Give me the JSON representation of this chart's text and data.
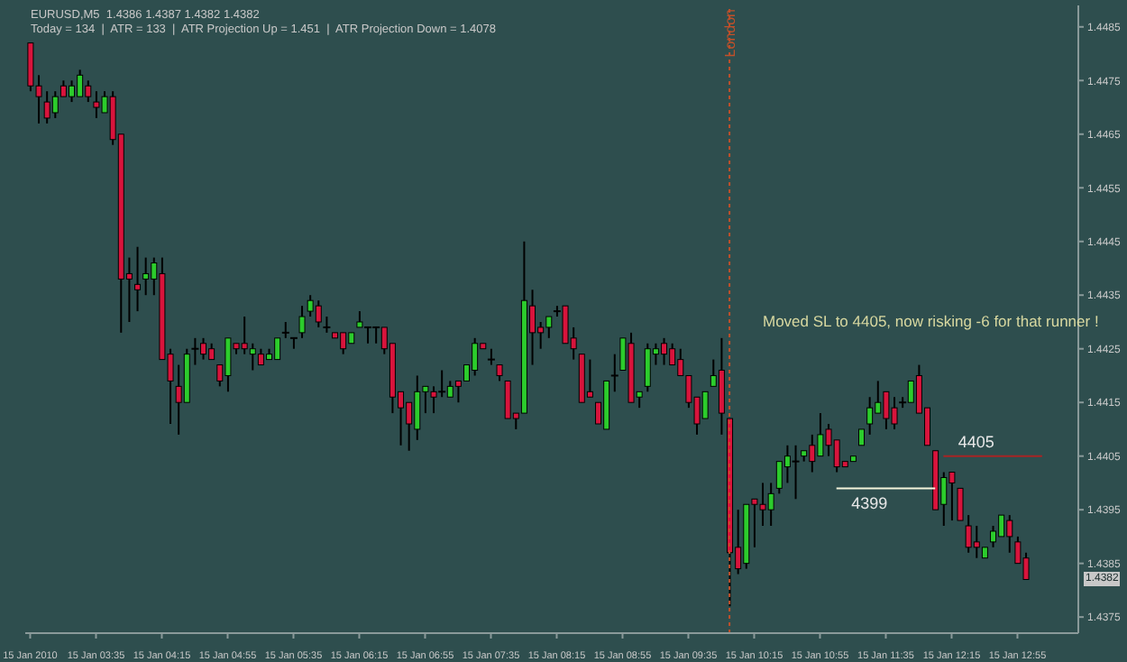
{
  "chart_data": {
    "type": "candlestick",
    "title": "EURUSD,M5  1.4386 1.4387 1.4382 1.4382",
    "subtitle": "Today = 134  |  ATR = 133  |  ATR Projection Up = 1.451  |  ATR Projection Down = 1.4078",
    "ylim": [
      1.4372,
      1.4489
    ],
    "yticks": [
      1.4375,
      1.4385,
      1.4395,
      1.4405,
      1.4415,
      1.4425,
      1.4435,
      1.4445,
      1.4455,
      1.4465,
      1.4475,
      1.4485
    ],
    "xlim": [
      "2010-01-15T02:52",
      "2010-01-15T13:32"
    ],
    "xticks": [
      {
        "value": "2010-01-15T02:55",
        "label": "15 Jan 2010"
      },
      {
        "value": "2010-01-15T03:35",
        "label": "15 Jan 03:35"
      },
      {
        "value": "2010-01-15T04:15",
        "label": "15 Jan 04:15"
      },
      {
        "value": "2010-01-15T04:55",
        "label": "15 Jan 04:55"
      },
      {
        "value": "2010-01-15T05:35",
        "label": "15 Jan 05:35"
      },
      {
        "value": "2010-01-15T06:15",
        "label": "15 Jan 06:15"
      },
      {
        "value": "2010-01-15T06:55",
        "label": "15 Jan 06:55"
      },
      {
        "value": "2010-01-15T07:35",
        "label": "15 Jan 07:35"
      },
      {
        "value": "2010-01-15T08:15",
        "label": "15 Jan 08:15"
      },
      {
        "value": "2010-01-15T08:55",
        "label": "15 Jan 08:55"
      },
      {
        "value": "2010-01-15T09:35",
        "label": "15 Jan 09:35"
      },
      {
        "value": "2010-01-15T10:15",
        "label": "15 Jan 10:15"
      },
      {
        "value": "2010-01-15T10:55",
        "label": "15 Jan 10:55"
      },
      {
        "value": "2010-01-15T11:35",
        "label": "15 Jan 11:35"
      },
      {
        "value": "2010-01-15T12:15",
        "label": "15 Jan 12:15"
      },
      {
        "value": "2010-01-15T12:55",
        "label": "15 Jan 12:55"
      }
    ],
    "ref_lines": [
      {
        "axis": "x",
        "value": "2010-01-15T10:00",
        "label": "London",
        "color": "#c0502a",
        "line_style": "dotted"
      }
    ],
    "annotations": [
      "Moved SL to 4405,  now risking -6 for that runner !",
      {
        "text": "4405",
        "x": "2010-01-15T12:30",
        "y": 1.4405
      },
      {
        "text": "4399",
        "x": "2010-01-15T11:25",
        "y": 1.4399
      },
      "1.4382"
    ],
    "series": [
      {
        "x": [
          "2010-01-15T02:55",
          "2010-01-15T03:00",
          "2010-01-15T03:05",
          "2010-01-15T03:10",
          "2010-01-15T03:15",
          "2010-01-15T03:20",
          "2010-01-15T03:25",
          "2010-01-15T03:30",
          "2010-01-15T03:35",
          "2010-01-15T03:40",
          "2010-01-15T03:45",
          "2010-01-15T03:50",
          "2010-01-15T03:55",
          "2010-01-15T04:00",
          "2010-01-15T04:05",
          "2010-01-15T04:10",
          "2010-01-15T04:15",
          "2010-01-15T04:20",
          "2010-01-15T04:25",
          "2010-01-15T04:30",
          "2010-01-15T04:35",
          "2010-01-15T04:40",
          "2010-01-15T04:45",
          "2010-01-15T04:50",
          "2010-01-15T04:55",
          "2010-01-15T05:00",
          "2010-01-15T05:05",
          "2010-01-15T05:10",
          "2010-01-15T05:15",
          "2010-01-15T05:20",
          "2010-01-15T05:25",
          "2010-01-15T05:30",
          "2010-01-15T05:35",
          "2010-01-15T05:40",
          "2010-01-15T05:45",
          "2010-01-15T05:50",
          "2010-01-15T05:55",
          "2010-01-15T06:00",
          "2010-01-15T06:05",
          "2010-01-15T06:10",
          "2010-01-15T06:15",
          "2010-01-15T06:20",
          "2010-01-15T06:25",
          "2010-01-15T06:30",
          "2010-01-15T06:35",
          "2010-01-15T06:40",
          "2010-01-15T06:45",
          "2010-01-15T06:50",
          "2010-01-15T06:55",
          "2010-01-15T07:00",
          "2010-01-15T07:05",
          "2010-01-15T07:10",
          "2010-01-15T07:15",
          "2010-01-15T07:20",
          "2010-01-15T07:25",
          "2010-01-15T07:30",
          "2010-01-15T07:35",
          "2010-01-15T07:40",
          "2010-01-15T07:45",
          "2010-01-15T07:50",
          "2010-01-15T07:55",
          "2010-01-15T08:00",
          "2010-01-15T08:05",
          "2010-01-15T08:10",
          "2010-01-15T08:15",
          "2010-01-15T08:20",
          "2010-01-15T08:25",
          "2010-01-15T08:30",
          "2010-01-15T08:35",
          "2010-01-15T08:40",
          "2010-01-15T08:45",
          "2010-01-15T08:50",
          "2010-01-15T08:55",
          "2010-01-15T09:00",
          "2010-01-15T09:05",
          "2010-01-15T09:10",
          "2010-01-15T09:15",
          "2010-01-15T09:20",
          "2010-01-15T09:25",
          "2010-01-15T09:30",
          "2010-01-15T09:35",
          "2010-01-15T09:40",
          "2010-01-15T09:45",
          "2010-01-15T09:50",
          "2010-01-15T09:55",
          "2010-01-15T10:00",
          "2010-01-15T10:05",
          "2010-01-15T10:10",
          "2010-01-15T10:15",
          "2010-01-15T10:20",
          "2010-01-15T10:25",
          "2010-01-15T10:30",
          "2010-01-15T10:35",
          "2010-01-15T10:40",
          "2010-01-15T10:45",
          "2010-01-15T10:50",
          "2010-01-15T10:55",
          "2010-01-15T11:00",
          "2010-01-15T11:05",
          "2010-01-15T11:10",
          "2010-01-15T11:15",
          "2010-01-15T11:20",
          "2010-01-15T11:25",
          "2010-01-15T11:30",
          "2010-01-15T11:35",
          "2010-01-15T11:40",
          "2010-01-15T11:45",
          "2010-01-15T11:50",
          "2010-01-15T11:55",
          "2010-01-15T12:00",
          "2010-01-15T12:05",
          "2010-01-15T12:10",
          "2010-01-15T12:15",
          "2010-01-15T12:20",
          "2010-01-15T12:25",
          "2010-01-15T12:30",
          "2010-01-15T12:35",
          "2010-01-15T12:40",
          "2010-01-15T12:45",
          "2010-01-15T12:50",
          "2010-01-15T12:55",
          "2010-01-15T13:00"
        ],
        "ohlc": [
          [
            1.4482,
            1.4482,
            1.4473,
            1.4474
          ],
          [
            1.4474,
            1.4476,
            1.4467,
            1.4472
          ],
          [
            1.4471,
            1.4473,
            1.4467,
            1.4468
          ],
          [
            1.4469,
            1.4473,
            1.4468,
            1.4472
          ],
          [
            1.4474,
            1.4475,
            1.4472,
            1.4472
          ],
          [
            1.4472,
            1.4475,
            1.4471,
            1.4474
          ],
          [
            1.4472,
            1.4477,
            1.4472,
            1.4476
          ],
          [
            1.4474,
            1.4475,
            1.4471,
            1.4472
          ],
          [
            1.4471,
            1.4473,
            1.4468,
            1.447
          ],
          [
            1.4469,
            1.4473,
            1.4469,
            1.4472
          ],
          [
            1.4472,
            1.4473,
            1.4463,
            1.4464
          ],
          [
            1.4465,
            1.4465,
            1.4428,
            1.4438
          ],
          [
            1.4439,
            1.4442,
            1.443,
            1.4438
          ],
          [
            1.4437,
            1.4444,
            1.4432,
            1.4436
          ],
          [
            1.4438,
            1.4442,
            1.4435,
            1.4439
          ],
          [
            1.4438,
            1.4442,
            1.4435,
            1.4441
          ],
          [
            1.4439,
            1.4442,
            1.4423,
            1.4423
          ],
          [
            1.4424,
            1.4425,
            1.4411,
            1.4419
          ],
          [
            1.4418,
            1.4422,
            1.4409,
            1.4415
          ],
          [
            1.4415,
            1.4425,
            1.4415,
            1.4424
          ],
          [
            1.4425,
            1.4427,
            1.4422,
            1.4425
          ],
          [
            1.4426,
            1.4427,
            1.4423,
            1.4424
          ],
          [
            1.4425,
            1.4426,
            1.4423,
            1.4423
          ],
          [
            1.4422,
            1.4422,
            1.4418,
            1.4419
          ],
          [
            1.442,
            1.4427,
            1.4417,
            1.4427
          ],
          [
            1.4426,
            1.4426,
            1.4424,
            1.4425
          ],
          [
            1.4426,
            1.4431,
            1.4424,
            1.4425
          ],
          [
            1.4424,
            1.4426,
            1.4421,
            1.4425
          ],
          [
            1.4424,
            1.4425,
            1.4422,
            1.4422
          ],
          [
            1.4423,
            1.4425,
            1.4423,
            1.4424
          ],
          [
            1.4423,
            1.4427,
            1.4423,
            1.4427
          ],
          [
            1.4428,
            1.443,
            1.4427,
            1.4428
          ],
          [
            1.4427,
            1.4427,
            1.4425,
            1.4427
          ],
          [
            1.4428,
            1.4433,
            1.4427,
            1.4431
          ],
          [
            1.4432,
            1.4435,
            1.4431,
            1.4434
          ],
          [
            1.4433,
            1.4434,
            1.4429,
            1.443
          ],
          [
            1.4429,
            1.4431,
            1.4428,
            1.4429
          ],
          [
            1.4428,
            1.4428,
            1.4427,
            1.4427
          ],
          [
            1.4428,
            1.4428,
            1.4424,
            1.4425
          ],
          [
            1.4426,
            1.4428,
            1.4426,
            1.4428
          ],
          [
            1.4429,
            1.4432,
            1.4429,
            1.443
          ],
          [
            1.4429,
            1.4429,
            1.4426,
            1.4429
          ],
          [
            1.4429,
            1.4429,
            1.4426,
            1.4429
          ],
          [
            1.4429,
            1.4429,
            1.4424,
            1.4425
          ],
          [
            1.4426,
            1.4426,
            1.4413,
            1.4416
          ],
          [
            1.4417,
            1.4417,
            1.4407,
            1.4414
          ],
          [
            1.4415,
            1.4415,
            1.4406,
            1.4411
          ],
          [
            1.441,
            1.442,
            1.4408,
            1.4417
          ],
          [
            1.4417,
            1.4418,
            1.4413,
            1.4418
          ],
          [
            1.4417,
            1.4418,
            1.4413,
            1.4416
          ],
          [
            1.4417,
            1.4421,
            1.4416,
            1.4417
          ],
          [
            1.4416,
            1.4419,
            1.4416,
            1.4418
          ],
          [
            1.4419,
            1.4419,
            1.4415,
            1.4418
          ],
          [
            1.4419,
            1.4422,
            1.4419,
            1.4422
          ],
          [
            1.4421,
            1.4427,
            1.442,
            1.4426
          ],
          [
            1.4426,
            1.4426,
            1.4425,
            1.4425
          ],
          [
            1.4423,
            1.4425,
            1.4422,
            1.4423
          ],
          [
            1.4422,
            1.4422,
            1.4419,
            1.442
          ],
          [
            1.4419,
            1.4419,
            1.4412,
            1.4412
          ],
          [
            1.4413,
            1.4413,
            1.441,
            1.4412
          ],
          [
            1.4413,
            1.4445,
            1.4413,
            1.4434
          ],
          [
            1.4433,
            1.4436,
            1.4422,
            1.4428
          ],
          [
            1.4429,
            1.443,
            1.4425,
            1.4428
          ],
          [
            1.4429,
            1.4431,
            1.4427,
            1.4431
          ],
          [
            1.4432,
            1.4433,
            1.4431,
            1.4432
          ],
          [
            1.4433,
            1.4433,
            1.4426,
            1.4426
          ],
          [
            1.4427,
            1.4429,
            1.4423,
            1.4425
          ],
          [
            1.4424,
            1.4424,
            1.4415,
            1.4415
          ],
          [
            1.4417,
            1.4423,
            1.4416,
            1.4416
          ],
          [
            1.4415,
            1.4415,
            1.4411,
            1.4411
          ],
          [
            1.441,
            1.4419,
            1.441,
            1.4419
          ],
          [
            1.442,
            1.4424,
            1.4417,
            1.442
          ],
          [
            1.4421,
            1.4427,
            1.4421,
            1.4427
          ],
          [
            1.4426,
            1.4428,
            1.4415,
            1.4415
          ],
          [
            1.4416,
            1.4417,
            1.4414,
            1.4417
          ],
          [
            1.4418,
            1.4426,
            1.4417,
            1.4425
          ],
          [
            1.4424,
            1.4426,
            1.4422,
            1.4425
          ],
          [
            1.4426,
            1.4427,
            1.4422,
            1.4424
          ],
          [
            1.4425,
            1.4426,
            1.4422,
            1.4422
          ],
          [
            1.4423,
            1.4425,
            1.442,
            1.442
          ],
          [
            1.442,
            1.442,
            1.4414,
            1.4415
          ],
          [
            1.4416,
            1.4416,
            1.4409,
            1.4411
          ],
          [
            1.4412,
            1.4417,
            1.4412,
            1.4417
          ],
          [
            1.4418,
            1.4423,
            1.4418,
            1.442
          ],
          [
            1.4421,
            1.4427,
            1.4409,
            1.4413
          ],
          [
            1.4412,
            1.4412,
            1.4377,
            1.4387
          ],
          [
            1.4388,
            1.4395,
            1.4383,
            1.4384
          ],
          [
            1.4385,
            1.4396,
            1.4384,
            1.4396
          ],
          [
            1.4397,
            1.4397,
            1.4388,
            1.4396
          ],
          [
            1.4396,
            1.44,
            1.4392,
            1.4395
          ],
          [
            1.4395,
            1.44,
            1.4392,
            1.4398
          ],
          [
            1.4399,
            1.4404,
            1.4398,
            1.4404
          ],
          [
            1.4403,
            1.4407,
            1.44,
            1.4405
          ],
          [
            1.4404,
            1.4407,
            1.4397,
            1.4404
          ],
          [
            1.4405,
            1.4406,
            1.4404,
            1.4406
          ],
          [
            1.4407,
            1.4409,
            1.4402,
            1.4404
          ],
          [
            1.4405,
            1.4413,
            1.4405,
            1.4409
          ],
          [
            1.441,
            1.4411,
            1.4405,
            1.4407
          ],
          [
            1.4408,
            1.4408,
            1.4402,
            1.4403
          ],
          [
            1.4404,
            1.4404,
            1.4403,
            1.4403
          ],
          [
            1.4404,
            1.4405,
            1.4404,
            1.4405
          ],
          [
            1.4407,
            1.441,
            1.4407,
            1.441
          ],
          [
            1.4411,
            1.4416,
            1.4409,
            1.4414
          ],
          [
            1.4413,
            1.4419,
            1.4413,
            1.4415
          ],
          [
            1.4417,
            1.4417,
            1.441,
            1.4412
          ],
          [
            1.4414,
            1.4416,
            1.441,
            1.4411
          ],
          [
            1.4415,
            1.4416,
            1.4414,
            1.4415
          ],
          [
            1.4415,
            1.4419,
            1.4415,
            1.4419
          ],
          [
            1.442,
            1.4422,
            1.4413,
            1.4413
          ],
          [
            1.4414,
            1.4414,
            1.4407,
            1.4407
          ],
          [
            1.4406,
            1.4406,
            1.4395,
            1.4395
          ],
          [
            1.4396,
            1.4402,
            1.4392,
            1.4401
          ],
          [
            1.4402,
            1.4402,
            1.4393,
            1.44
          ],
          [
            1.4399,
            1.4399,
            1.4393,
            1.4393
          ],
          [
            1.4392,
            1.4394,
            1.4387,
            1.4388
          ],
          [
            1.4389,
            1.4392,
            1.4386,
            1.4388
          ],
          [
            1.4386,
            1.4388,
            1.4386,
            1.4388
          ],
          [
            1.4389,
            1.4392,
            1.4388,
            1.4391
          ],
          [
            1.439,
            1.4394,
            1.439,
            1.4394
          ],
          [
            1.4393,
            1.4394,
            1.4387,
            1.439
          ],
          [
            1.4389,
            1.439,
            1.4385,
            1.4385
          ],
          [
            1.4386,
            1.4387,
            1.4382,
            1.4382
          ]
        ],
        "colors": [
          "#d8143c",
          "#d8143c",
          "#d8143c",
          "#2ccc2c",
          "#d8143c",
          "#2ccc2c",
          "#2ccc2c",
          "#d8143c",
          "#d8143c",
          "#2ccc2c",
          "#d8143c",
          "#d8143c",
          "#d8143c",
          "#d8143c",
          "#2ccc2c",
          "#2ccc2c",
          "#d8143c",
          "#d8143c",
          "#d8143c",
          "#2ccc2c",
          "#000000",
          "#d8143c",
          "#d8143c",
          "#d8143c",
          "#2ccc2c",
          "#d8143c",
          "#d8143c",
          "#2ccc2c",
          "#d8143c",
          "#2ccc2c",
          "#2ccc2c",
          "#000000",
          "#000000",
          "#2ccc2c",
          "#2ccc2c",
          "#d8143c",
          "#000000",
          "#d8143c",
          "#d8143c",
          "#2ccc2c",
          "#2ccc2c",
          "#000000",
          "#000000",
          "#d8143c",
          "#d8143c",
          "#d8143c",
          "#d8143c",
          "#2ccc2c",
          "#2ccc2c",
          "#d8143c",
          "#000000",
          "#2ccc2c",
          "#d8143c",
          "#2ccc2c",
          "#2ccc2c",
          "#d8143c",
          "#000000",
          "#d8143c",
          "#d8143c",
          "#d8143c",
          "#2ccc2c",
          "#d8143c",
          "#d8143c",
          "#2ccc2c",
          "#000000",
          "#d8143c",
          "#d8143c",
          "#d8143c",
          "#d8143c",
          "#d8143c",
          "#2ccc2c",
          "#000000",
          "#2ccc2c",
          "#d8143c",
          "#2ccc2c",
          "#2ccc2c",
          "#2ccc2c",
          "#d8143c",
          "#d8143c",
          "#d8143c",
          "#d8143c",
          "#d8143c",
          "#2ccc2c",
          "#2ccc2c",
          "#d8143c",
          "#d8143c",
          "#d8143c",
          "#2ccc2c",
          "#d8143c",
          "#d8143c",
          "#2ccc2c",
          "#2ccc2c",
          "#2ccc2c",
          "#000000",
          "#2ccc2c",
          "#d8143c",
          "#2ccc2c",
          "#d8143c",
          "#d8143c",
          "#d8143c",
          "#2ccc2c",
          "#2ccc2c",
          "#2ccc2c",
          "#2ccc2c",
          "#d8143c",
          "#d8143c",
          "#000000",
          "#2ccc2c",
          "#d8143c",
          "#d8143c",
          "#d8143c",
          "#2ccc2c",
          "#d8143c",
          "#d8143c",
          "#d8143c",
          "#d8143c",
          "#2ccc2c",
          "#2ccc2c",
          "#2ccc2c",
          "#d8143c",
          "#d8143c",
          "#d8143c"
        ]
      },
      {
        "type": "line",
        "color": "#a82424",
        "x": [
          "2010-01-15T12:10",
          "2010-01-15T13:10"
        ],
        "values": [
          1.4405,
          1.4405
        ]
      },
      {
        "type": "line",
        "color": "#f4f4dc",
        "x": [
          "2010-01-15T11:05",
          "2010-01-15T12:05"
        ],
        "values": [
          1.4399,
          1.4399
        ]
      }
    ]
  }
}
